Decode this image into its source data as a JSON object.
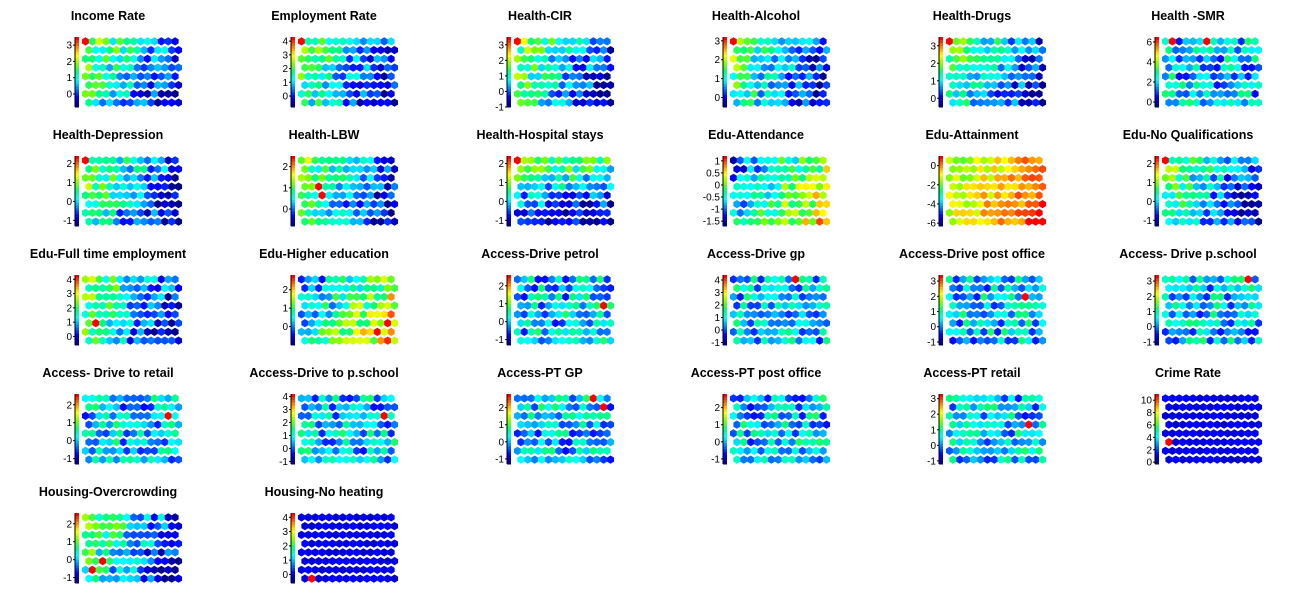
{
  "figure": {
    "colormap": [
      "#00008b",
      "#0000ff",
      "#0080ff",
      "#00ffff",
      "#00ff80",
      "#80ff00",
      "#ffff00",
      "#ff8000",
      "#ff0000"
    ],
    "rows": 5,
    "cols": 6
  },
  "chart_data": [
    {
      "type": "heatmap",
      "title": "Income Rate",
      "ticks": [
        "3",
        "2",
        "1",
        "0"
      ],
      "ylim": [
        -0.8,
        3.5
      ],
      "hot": [
        [
          0,
          0
        ]
      ],
      "seed": 1,
      "trend": "left"
    },
    {
      "type": "heatmap",
      "title": "Employment Rate",
      "ticks": [
        "4",
        "3",
        "2",
        "1",
        "0"
      ],
      "ylim": [
        -0.8,
        4.3
      ],
      "hot": [
        [
          0,
          0
        ]
      ],
      "seed": 2,
      "trend": "left"
    },
    {
      "type": "heatmap",
      "title": "Health-CIR",
      "ticks": [
        "3",
        "2",
        "1",
        "0",
        "-1"
      ],
      "ylim": [
        -1,
        3.5
      ],
      "hot": [
        [
          0,
          0
        ]
      ],
      "seed": 3,
      "trend": "left"
    },
    {
      "type": "heatmap",
      "title": "Health-Alcohol",
      "ticks": [
        "3",
        "2",
        "1",
        "0"
      ],
      "ylim": [
        -0.5,
        3.2
      ],
      "hot": [
        [
          0,
          0
        ]
      ],
      "seed": 4,
      "trend": "left"
    },
    {
      "type": "heatmap",
      "title": "Health-Drugs",
      "ticks": [
        "3",
        "2",
        "1",
        "0"
      ],
      "ylim": [
        -0.5,
        3.5
      ],
      "hot": [
        [
          0,
          0
        ]
      ],
      "seed": 5,
      "trend": "left"
    },
    {
      "type": "heatmap",
      "title": "Health -SMR",
      "ticks": [
        "6",
        "4",
        "2",
        "0"
      ],
      "ylim": [
        -0.5,
        6.5
      ],
      "hot": [
        [
          0,
          1
        ],
        [
          0,
          6
        ]
      ],
      "seed": 6,
      "trend": "flat"
    },
    {
      "type": "heatmap",
      "title": "Health-Depression",
      "ticks": [
        "2",
        "1",
        "0",
        "-1"
      ],
      "ylim": [
        -1.3,
        2.4
      ],
      "hot": [
        [
          0,
          0
        ]
      ],
      "seed": 7,
      "trend": "left"
    },
    {
      "type": "heatmap",
      "title": "Health-LBW",
      "ticks": [
        "2",
        "1",
        "0"
      ],
      "ylim": [
        -0.8,
        2.5
      ],
      "hot": [
        [
          3,
          2
        ],
        [
          4,
          3
        ]
      ],
      "seed": 8,
      "trend": "left"
    },
    {
      "type": "heatmap",
      "title": "Health-Hospital stays",
      "ticks": [
        "2",
        "1",
        "0",
        "-1"
      ],
      "ylim": [
        -1.3,
        2.4
      ],
      "hot": [
        [
          0,
          0
        ]
      ],
      "seed": 9,
      "trend": "top"
    },
    {
      "type": "heatmap",
      "title": "Edu-Attendance",
      "ticks": [
        "1",
        "0.5",
        "0",
        "-0.5",
        "-1",
        "-1.5"
      ],
      "ylim": [
        -1.7,
        1.2
      ],
      "hot": [],
      "seed": 10,
      "trend": "right"
    },
    {
      "type": "heatmap",
      "title": "Edu-Attainment",
      "ticks": [
        "0",
        "-2",
        "-4",
        "-6"
      ],
      "ylim": [
        -6.3,
        1
      ],
      "hot": [],
      "seed": 11,
      "trend": "hot"
    },
    {
      "type": "heatmap",
      "title": "Edu-No Qualifications",
      "ticks": [
        "2",
        "1",
        "0",
        "-1"
      ],
      "ylim": [
        -1.3,
        2.4
      ],
      "hot": [
        [
          0,
          0
        ]
      ],
      "seed": 12,
      "trend": "left"
    },
    {
      "type": "heatmap",
      "title": "Edu-Full time employment",
      "ticks": [
        "4",
        "3",
        "2",
        "1",
        "0"
      ],
      "ylim": [
        -0.6,
        4.3
      ],
      "hot": [
        [
          5,
          1
        ]
      ],
      "seed": 13,
      "trend": "left"
    },
    {
      "type": "heatmap",
      "title": "Edu-Higher education",
      "ticks": [
        "2",
        "1",
        "0"
      ],
      "ylim": [
        -1,
        2.8
      ],
      "hot": [
        [
          5,
          12
        ],
        [
          6,
          11
        ]
      ],
      "seed": 14,
      "trend": "right"
    },
    {
      "type": "heatmap",
      "title": "Access-Drive petrol",
      "ticks": [
        "2",
        "1",
        "0",
        "-1"
      ],
      "ylim": [
        -1.3,
        2.6
      ],
      "hot": [
        [
          3,
          12
        ]
      ],
      "seed": 15,
      "trend": "flat"
    },
    {
      "type": "heatmap",
      "title": "Access-Drive gp",
      "ticks": [
        "4",
        "3",
        "2",
        "1",
        "0",
        "-1"
      ],
      "ylim": [
        -1.2,
        4.4
      ],
      "hot": [
        [
          0,
          9
        ]
      ],
      "seed": 16,
      "trend": "flat"
    },
    {
      "type": "heatmap",
      "title": "Access-Drive post office",
      "ticks": [
        "3",
        "2",
        "1",
        "0",
        "-1"
      ],
      "ylim": [
        -1.2,
        3.4
      ],
      "hot": [
        [
          2,
          11
        ]
      ],
      "seed": 17,
      "trend": "flat"
    },
    {
      "type": "heatmap",
      "title": "Access- Drive p.school",
      "ticks": [
        "3",
        "2",
        "1",
        "0",
        "-1"
      ],
      "ylim": [
        -1.2,
        3.4
      ],
      "hot": [
        [
          0,
          12
        ]
      ],
      "seed": 18,
      "trend": "flat"
    },
    {
      "type": "heatmap",
      "title": "Access- Drive to retail",
      "ticks": [
        "2",
        "1",
        "0",
        "-1"
      ],
      "ylim": [
        -1.3,
        2.6
      ],
      "hot": [
        [
          2,
          12
        ]
      ],
      "seed": 19,
      "trend": "flat"
    },
    {
      "type": "heatmap",
      "title": "Access-Drive to p.school",
      "ticks": [
        "4",
        "3",
        "2",
        "1",
        "0",
        "-1"
      ],
      "ylim": [
        -1.2,
        4.2
      ],
      "hot": [
        [
          2,
          12
        ]
      ],
      "seed": 20,
      "trend": "flat"
    },
    {
      "type": "heatmap",
      "title": "Access-PT GP",
      "ticks": [
        "2",
        "1",
        "0",
        "-1"
      ],
      "ylim": [
        -1.3,
        2.8
      ],
      "hot": [
        [
          0,
          11
        ],
        [
          1,
          12
        ]
      ],
      "seed": 21,
      "trend": "flat"
    },
    {
      "type": "heatmap",
      "title": "Access-PT post office",
      "ticks": [
        "2",
        "1",
        "0",
        "-1"
      ],
      "ylim": [
        -1.3,
        2.8
      ],
      "hot": [],
      "seed": 22,
      "trend": "flat"
    },
    {
      "type": "heatmap",
      "title": "Access-PT retail",
      "ticks": [
        "3",
        "2",
        "1",
        "0",
        "-1"
      ],
      "ylim": [
        -1.2,
        3.3
      ],
      "hot": [
        [
          3,
          11
        ]
      ],
      "seed": 23,
      "trend": "flat"
    },
    {
      "type": "heatmap",
      "title": "Crime Rate",
      "ticks": [
        "10",
        "8",
        "6",
        "4",
        "2",
        "0"
      ],
      "ylim": [
        -0.3,
        11
      ],
      "hot": [
        [
          5,
          0
        ]
      ],
      "seed": 24,
      "trend": "cold"
    },
    {
      "type": "heatmap",
      "title": "Housing-Overcrowding",
      "ticks": [
        "2",
        "1",
        "0",
        "-1"
      ],
      "ylim": [
        -1.3,
        2.6
      ],
      "hot": [
        [
          6,
          1
        ],
        [
          5,
          2
        ]
      ],
      "seed": 25,
      "trend": "left"
    },
    {
      "type": "heatmap",
      "title": "Housing-No heating",
      "ticks": [
        "4",
        "3",
        "2",
        "1",
        "0"
      ],
      "ylim": [
        -0.6,
        4.3
      ],
      "hot": [
        [
          7,
          1
        ]
      ],
      "seed": 26,
      "trend": "cold"
    }
  ]
}
